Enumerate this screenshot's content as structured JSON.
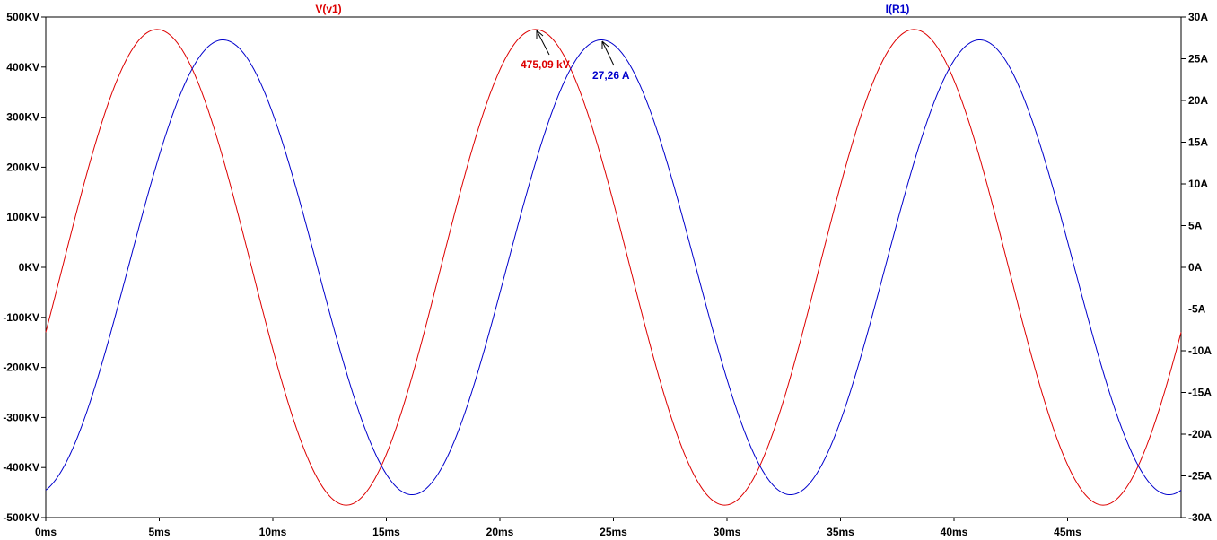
{
  "chart_data": {
    "type": "line",
    "x_unit": "ms",
    "x_range": [
      0,
      50
    ],
    "x_ticks": [
      0,
      5,
      10,
      15,
      20,
      25,
      30,
      35,
      40,
      45
    ],
    "x_tick_labels": [
      "0ms",
      "5ms",
      "10ms",
      "15ms",
      "20ms",
      "25ms",
      "30ms",
      "35ms",
      "40ms",
      "45ms"
    ],
    "left_axis": {
      "range": [
        -500,
        500
      ],
      "unit": "KV",
      "ticks": [
        500,
        400,
        300,
        200,
        100,
        0,
        -100,
        -200,
        -300,
        -400,
        -500
      ],
      "tick_labels": [
        "500KV",
        "400KV",
        "300KV",
        "200KV",
        "100KV",
        "0KV",
        "-100KV",
        "-200KV",
        "-300KV",
        "-400KV",
        "-500KV"
      ]
    },
    "right_axis": {
      "range": [
        -30,
        30
      ],
      "unit": "A",
      "ticks": [
        30,
        25,
        20,
        15,
        10,
        5,
        0,
        -5,
        -10,
        -15,
        -20,
        -25,
        -30
      ],
      "tick_labels": [
        "30A",
        "25A",
        "20A",
        "15A",
        "10A",
        "5A",
        "0A",
        "-5A",
        "-10A",
        "-15A",
        "-20A",
        "-25A",
        "-30A"
      ]
    },
    "grid": false,
    "series": [
      {
        "name": "V(v1)",
        "axis": "left",
        "color": "#dd0000",
        "waveform": "sine",
        "amplitude": 475.09,
        "frequency_hz": 60,
        "peak_times_ms": [
          4.9,
          21.6,
          38.3
        ],
        "value_at_0ms": -130,
        "value_at_end": -135
      },
      {
        "name": "I(R1)",
        "axis": "right",
        "color": "#0000cc",
        "waveform": "sine",
        "amplitude": 27.26,
        "frequency_hz": 60,
        "peak_times_ms": [
          7.8,
          24.5,
          41.2
        ],
        "value_at_0ms": -27,
        "value_at_end": -27
      }
    ],
    "annotations": [
      {
        "text": "475,09 kV",
        "series": "V(v1)",
        "x_ms": 21.6,
        "value": 475.09,
        "color": "#dd0000"
      },
      {
        "text": "27,26 A",
        "series": "I(R1)",
        "x_ms": 24.5,
        "value": 27.26,
        "color": "#0000cc"
      }
    ]
  }
}
